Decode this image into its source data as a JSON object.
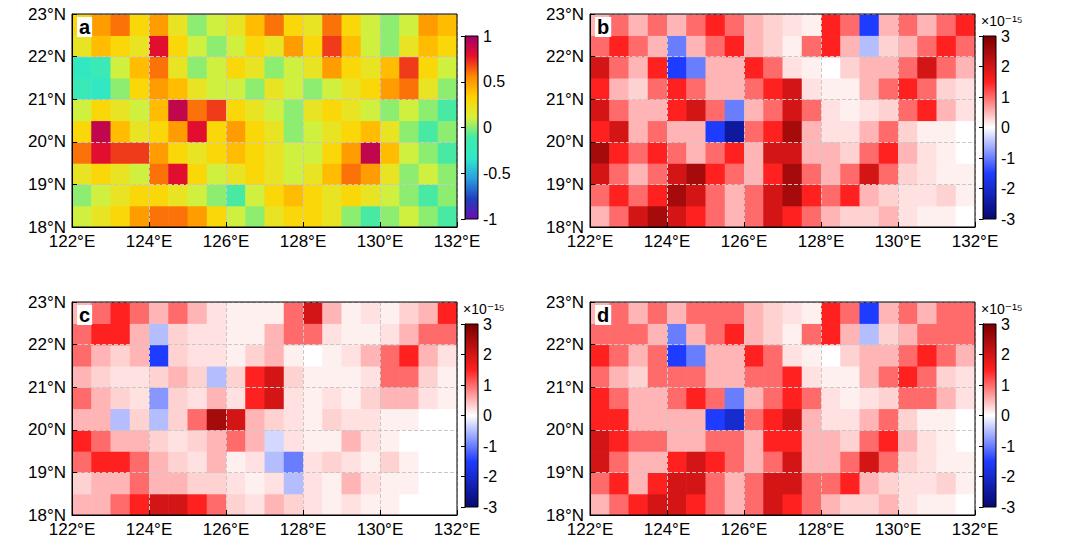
{
  "chart_data": [
    {
      "type": "heatmap",
      "title": "a",
      "x": [
        122.25,
        122.75,
        123.25,
        123.75,
        124.25,
        124.75,
        125.25,
        125.75,
        126.25,
        126.75,
        127.25,
        127.75,
        128.25,
        128.75,
        129.25,
        129.75,
        130.25,
        130.75,
        131.25,
        131.75
      ],
      "y": [
        18.25,
        18.75,
        19.25,
        19.75,
        20.25,
        20.75,
        21.25,
        21.75,
        22.25,
        22.75
      ],
      "values": [
        [
          0.1,
          0.2,
          0.3,
          0.5,
          0.6,
          0.6,
          0.5,
          0.3,
          0.1,
          0.0,
          0.2,
          0.3,
          0.3,
          0.2,
          0.0,
          -0.1,
          0.0,
          0.1,
          0.0,
          -0.1
        ],
        [
          0.0,
          0.1,
          0.2,
          0.3,
          0.3,
          0.2,
          0.1,
          0.0,
          -0.1,
          0.1,
          0.3,
          0.4,
          0.3,
          0.2,
          0.3,
          0.2,
          0.1,
          0.0,
          -0.1,
          0.0
        ],
        [
          0.2,
          0.3,
          0.2,
          0.1,
          0.6,
          0.8,
          0.3,
          0.1,
          0.2,
          0.3,
          0.2,
          0.1,
          0.2,
          0.4,
          0.6,
          0.5,
          0.2,
          0.0,
          0.1,
          0.0
        ],
        [
          0.6,
          0.8,
          0.7,
          0.7,
          0.5,
          0.3,
          0.2,
          0.3,
          0.4,
          0.3,
          0.2,
          0.1,
          0.1,
          0.3,
          0.5,
          0.9,
          0.4,
          0.1,
          0.0,
          -0.1
        ],
        [
          0.3,
          0.9,
          0.4,
          0.2,
          0.3,
          0.5,
          0.8,
          0.3,
          0.5,
          0.3,
          0.2,
          0.0,
          0.1,
          0.2,
          0.3,
          0.4,
          0.2,
          0.0,
          -0.1,
          0.0
        ],
        [
          0.1,
          0.3,
          0.2,
          0.1,
          0.4,
          0.9,
          0.6,
          0.7,
          0.3,
          0.2,
          0.1,
          0.0,
          0.2,
          0.3,
          0.2,
          0.1,
          0.0,
          0.1,
          0.0,
          -0.1
        ],
        [
          -0.2,
          -0.3,
          0.0,
          0.3,
          0.5,
          0.4,
          0.2,
          0.1,
          0.1,
          0.0,
          0.2,
          0.1,
          0.0,
          0.1,
          0.2,
          0.3,
          0.5,
          0.6,
          0.2,
          0.0
        ],
        [
          -0.3,
          -0.2,
          0.1,
          0.4,
          0.6,
          0.2,
          0.0,
          0.1,
          0.3,
          0.2,
          0.0,
          0.1,
          0.2,
          0.5,
          0.3,
          0.2,
          0.4,
          0.7,
          0.3,
          0.1
        ],
        [
          0.2,
          0.4,
          0.3,
          0.2,
          0.8,
          0.3,
          0.1,
          0.0,
          0.1,
          0.3,
          0.2,
          0.5,
          0.3,
          0.7,
          0.4,
          0.1,
          0.0,
          0.2,
          0.4,
          0.3
        ],
        [
          0.3,
          0.5,
          0.6,
          0.3,
          0.5,
          0.2,
          0.0,
          0.1,
          0.2,
          0.4,
          0.6,
          0.3,
          0.2,
          0.6,
          0.3,
          0.1,
          0.0,
          0.1,
          0.5,
          0.4
        ]
      ],
      "xlim": [
        122,
        132
      ],
      "ylim": [
        18,
        23
      ],
      "xticks": [
        {
          "value": 122,
          "label": "122°E"
        },
        {
          "value": 124,
          "label": "124°E"
        },
        {
          "value": 126,
          "label": "126°E"
        },
        {
          "value": 128,
          "label": "128°E"
        },
        {
          "value": 130,
          "label": "130°E"
        },
        {
          "value": 132,
          "label": "132°E"
        }
      ],
      "yticks": [
        {
          "value": 18,
          "label": "18°N"
        },
        {
          "value": 19,
          "label": "19°N"
        },
        {
          "value": 20,
          "label": "20°N"
        },
        {
          "value": 21,
          "label": "21°N"
        },
        {
          "value": 22,
          "label": "22°N"
        },
        {
          "value": 23,
          "label": "23°N"
        }
      ],
      "grid": true,
      "colorbar_range": [
        -1,
        1
      ],
      "colorbar_ticks": [
        -1,
        -0.5,
        0,
        0.5,
        1
      ]
    },
    {
      "type": "heatmap",
      "title": "b",
      "x": [
        122.25,
        122.75,
        123.25,
        123.75,
        124.25,
        124.75,
        125.25,
        125.75,
        126.25,
        126.75,
        127.25,
        127.75,
        128.25,
        128.75,
        129.25,
        129.75,
        130.25,
        130.75,
        131.25,
        131.75
      ],
      "y": [
        18.25,
        18.75,
        19.25,
        19.75,
        20.25,
        20.75,
        21.25,
        21.75,
        22.25,
        22.75
      ],
      "values": [
        [
          0.5,
          1,
          2,
          2.5,
          2,
          1.5,
          1,
          0.5,
          1,
          2,
          1.5,
          1,
          0.5,
          0.3,
          0.3,
          0.5,
          0.2,
          0.1,
          0.1,
          0
        ],
        [
          1,
          1.5,
          1,
          1.5,
          2.5,
          2,
          1,
          0.5,
          1,
          2,
          2.5,
          1.5,
          1,
          1.5,
          0.5,
          0.3,
          0.2,
          0.2,
          0.3,
          0.1
        ],
        [
          2,
          1,
          0.5,
          1,
          2,
          2.5,
          1.5,
          1,
          0.5,
          1.5,
          2.5,
          1,
          0.5,
          1,
          2,
          1,
          0.3,
          0.2,
          0.1,
          0.1
        ],
        [
          2.5,
          1.5,
          1,
          1.5,
          1,
          0.5,
          1,
          1.5,
          0.5,
          2,
          2,
          0.5,
          0.5,
          0.3,
          1,
          1.5,
          0.5,
          0.2,
          0.1,
          0
        ],
        [
          1.5,
          2,
          0.5,
          1,
          0.5,
          0.5,
          -1.5,
          -2.5,
          1,
          1.5,
          2.5,
          0.5,
          0.2,
          0.2,
          0.5,
          1,
          0.3,
          0.1,
          0.1,
          0
        ],
        [
          2,
          1,
          0.5,
          0.5,
          1.5,
          2,
          1,
          -1,
          0.5,
          1,
          2,
          1,
          0.2,
          0.1,
          0.2,
          0.3,
          1,
          1.5,
          0.5,
          0.2
        ],
        [
          1.5,
          0.5,
          0.3,
          1,
          1.5,
          1,
          0.5,
          0.5,
          1,
          1.5,
          2,
          0.2,
          0.1,
          0.1,
          0.5,
          1,
          1.5,
          1,
          0.3,
          0.2
        ],
        [
          2,
          1,
          0.5,
          1.5,
          -1.5,
          -1,
          0.5,
          0.5,
          1.5,
          1,
          0.2,
          0.1,
          0,
          0.3,
          0.5,
          0.5,
          1,
          2,
          1,
          0.5
        ],
        [
          1,
          1.5,
          1,
          0.5,
          -1,
          0.5,
          1,
          1.5,
          0.5,
          0.3,
          0.1,
          1,
          1.5,
          0.5,
          -0.5,
          0.3,
          0.5,
          1,
          1.5,
          1
        ],
        [
          0.5,
          1,
          0.5,
          1,
          0.5,
          1,
          1.5,
          1,
          0.5,
          0.3,
          0.2,
          0.1,
          1.5,
          1,
          -1.5,
          0.5,
          1,
          0.5,
          1,
          1.5
        ]
      ],
      "xlim": [
        122,
        132
      ],
      "ylim": [
        18,
        23
      ],
      "xticks": [
        {
          "value": 122,
          "label": "122°E"
        },
        {
          "value": 124,
          "label": "124°E"
        },
        {
          "value": 126,
          "label": "126°E"
        },
        {
          "value": 128,
          "label": "128°E"
        },
        {
          "value": 130,
          "label": "130°E"
        },
        {
          "value": 132,
          "label": "132°E"
        }
      ],
      "yticks": [
        {
          "value": 18,
          "label": "18°N"
        },
        {
          "value": 19,
          "label": "19°N"
        },
        {
          "value": 20,
          "label": "20°N"
        },
        {
          "value": 21,
          "label": "21°N"
        },
        {
          "value": 22,
          "label": "22°N"
        },
        {
          "value": 23,
          "label": "23°N"
        }
      ],
      "grid": true,
      "colorbar_range": [
        -3,
        3
      ],
      "colorbar_ticks": [
        -3,
        -2,
        -1,
        0,
        1,
        2,
        3
      ],
      "colorbar_label": "×10⁻¹⁵"
    },
    {
      "type": "heatmap",
      "title": "c",
      "x": [
        122.25,
        122.75,
        123.25,
        123.75,
        124.25,
        124.75,
        125.25,
        125.75,
        126.25,
        126.75,
        127.25,
        127.75,
        128.25,
        128.75,
        129.25,
        129.75,
        130.25,
        130.75,
        131.25,
        131.75
      ],
      "y": [
        18.25,
        18.75,
        19.25,
        19.75,
        20.25,
        20.75,
        21.25,
        21.75,
        22.25,
        22.75
      ],
      "values": [
        [
          0.5,
          0.5,
          1,
          1.5,
          2,
          2,
          1.5,
          1,
          0.3,
          0.2,
          0.5,
          0.3,
          0.2,
          0.1,
          0.2,
          0.1,
          0.1,
          0,
          0,
          0
        ],
        [
          0.3,
          0.5,
          0.5,
          1,
          0.5,
          0.5,
          0.3,
          0.3,
          0.2,
          0.1,
          0.2,
          -0.5,
          0.2,
          0.1,
          0.5,
          0.2,
          0.1,
          0.1,
          0,
          0
        ],
        [
          1,
          1.5,
          1.5,
          1,
          0.5,
          0.3,
          0.2,
          0.5,
          0.1,
          0.2,
          -0.5,
          -1,
          0.2,
          0.3,
          0.2,
          0.1,
          0.3,
          0.1,
          0,
          0
        ],
        [
          1.5,
          1,
          0.5,
          0.5,
          0.3,
          0.2,
          0.3,
          0.5,
          1,
          0.5,
          -0.3,
          0.2,
          0.1,
          0.1,
          0.5,
          0.2,
          0.1,
          0,
          0,
          0
        ],
        [
          0.5,
          0.5,
          -0.5,
          0.3,
          -0.5,
          0.3,
          1,
          2.5,
          2,
          0.5,
          0.3,
          0.2,
          0.1,
          0.3,
          0.2,
          0.2,
          0.1,
          0.1,
          0,
          0
        ],
        [
          1,
          0.5,
          0.3,
          0.2,
          -0.8,
          0.3,
          0.2,
          0.5,
          0.2,
          1.5,
          2,
          0.2,
          0.1,
          0.2,
          0.1,
          0.3,
          0.5,
          0.5,
          0.2,
          0.1
        ],
        [
          0.5,
          0.3,
          0.2,
          0.2,
          0.3,
          0.5,
          0.3,
          -0.5,
          0.3,
          1.5,
          2,
          0.3,
          0.1,
          0.1,
          0.1,
          0.2,
          1,
          1,
          0.3,
          0.1
        ],
        [
          1,
          0.5,
          0.3,
          0.5,
          -1.5,
          0.3,
          0.2,
          0.2,
          0.1,
          0.3,
          0.5,
          0.1,
          0,
          0.1,
          0.2,
          0.5,
          1,
          1.5,
          0.5,
          0.2
        ],
        [
          1,
          1.5,
          1.5,
          0.5,
          -0.5,
          0.3,
          0.2,
          0.2,
          0.1,
          0.1,
          0.5,
          1,
          1,
          0.2,
          0.1,
          0.1,
          0.2,
          0.5,
          1,
          1
        ],
        [
          0.5,
          1,
          1.5,
          1,
          0.5,
          1,
          0.5,
          0.2,
          0.1,
          0.1,
          0.1,
          1,
          2,
          0.5,
          0.1,
          0.2,
          0.1,
          0.3,
          0.5,
          1.5
        ]
      ],
      "xlim": [
        122,
        132
      ],
      "ylim": [
        18,
        23
      ],
      "xticks": [
        {
          "value": 122,
          "label": "122°E"
        },
        {
          "value": 124,
          "label": "124°E"
        },
        {
          "value": 126,
          "label": "126°E"
        },
        {
          "value": 128,
          "label": "128°E"
        },
        {
          "value": 130,
          "label": "130°E"
        },
        {
          "value": 132,
          "label": "132°E"
        }
      ],
      "yticks": [
        {
          "value": 18,
          "label": "18°N"
        },
        {
          "value": 19,
          "label": "19°N"
        },
        {
          "value": 20,
          "label": "20°N"
        },
        {
          "value": 21,
          "label": "21°N"
        },
        {
          "value": 22,
          "label": "22°N"
        },
        {
          "value": 23,
          "label": "23°N"
        }
      ],
      "grid": true,
      "colorbar_range": [
        -3,
        3
      ],
      "colorbar_ticks": [
        -3,
        -2,
        -1,
        0,
        1,
        2,
        3
      ],
      "colorbar_label": "×10⁻¹⁵"
    },
    {
      "type": "heatmap",
      "title": "d",
      "x": [
        122.25,
        122.75,
        123.25,
        123.75,
        124.25,
        124.75,
        125.25,
        125.75,
        126.25,
        126.75,
        127.25,
        127.75,
        128.25,
        128.75,
        129.25,
        129.75,
        130.25,
        130.75,
        131.25,
        131.75
      ],
      "y": [
        18.25,
        18.75,
        19.25,
        19.75,
        20.25,
        20.75,
        21.25,
        21.75,
        22.25,
        22.75
      ],
      "values": [
        [
          0.5,
          1,
          1.5,
          2,
          2,
          1.5,
          1,
          0.5,
          1,
          2,
          1.5,
          1,
          0.5,
          0.3,
          0.3,
          0.5,
          0.2,
          0.1,
          0.1,
          0
        ],
        [
          1,
          1.5,
          0.5,
          1.5,
          2,
          2,
          1,
          0.5,
          1,
          2,
          2,
          1,
          1,
          1.5,
          0.5,
          0.3,
          0.2,
          0.2,
          0.3,
          0.1
        ],
        [
          2,
          1,
          0.5,
          0.5,
          1.5,
          2,
          1.5,
          1,
          0.5,
          1,
          2,
          0.5,
          0.5,
          1,
          2,
          1,
          0.3,
          0.2,
          0.1,
          0.1
        ],
        [
          2,
          1.5,
          1,
          1,
          0.5,
          0.5,
          1,
          1,
          0.5,
          1.5,
          1.5,
          0.5,
          0.5,
          0.3,
          1,
          1.5,
          0.5,
          0.2,
          0.1,
          0
        ],
        [
          1.5,
          1.5,
          0.5,
          0.5,
          0.5,
          0.5,
          -1.5,
          -2,
          1,
          1.5,
          2,
          0.5,
          0.2,
          0.2,
          0.5,
          1,
          0.3,
          0.1,
          0.1,
          0
        ],
        [
          1.5,
          1,
          0.5,
          0.5,
          1,
          1.5,
          1,
          -1,
          0.5,
          1,
          1.5,
          1,
          0.2,
          0.1,
          0.2,
          0.3,
          1,
          1,
          0.5,
          0.2
        ],
        [
          1,
          0.5,
          0.3,
          1,
          1,
          1,
          0.5,
          0.5,
          1,
          1,
          1.5,
          0.2,
          0.1,
          0.1,
          0.5,
          1,
          1.5,
          1,
          0.3,
          0.2
        ],
        [
          1.5,
          1,
          0.5,
          1,
          -1.5,
          -1,
          0.5,
          0.5,
          1.5,
          1,
          0.2,
          0.1,
          0,
          0.3,
          0.5,
          0.5,
          1,
          1.5,
          1,
          0.5
        ],
        [
          1,
          1,
          1,
          0.5,
          -1,
          0.5,
          1,
          1.5,
          0.5,
          0.3,
          0.1,
          1,
          1.5,
          0.5,
          -0.5,
          0.3,
          0.5,
          1,
          1,
          1
        ],
        [
          0.5,
          1,
          0.5,
          1,
          0.5,
          1,
          1,
          1,
          0.5,
          0.3,
          0.2,
          0.1,
          1.5,
          1,
          -1.5,
          0.5,
          1,
          0.5,
          1,
          1
        ]
      ],
      "xlim": [
        122,
        132
      ],
      "ylim": [
        18,
        23
      ],
      "xticks": [
        {
          "value": 122,
          "label": "122°E"
        },
        {
          "value": 124,
          "label": "124°E"
        },
        {
          "value": 126,
          "label": "126°E"
        },
        {
          "value": 128,
          "label": "128°E"
        },
        {
          "value": 130,
          "label": "130°E"
        },
        {
          "value": 132,
          "label": "132°E"
        }
      ],
      "yticks": [
        {
          "value": 18,
          "label": "18°N"
        },
        {
          "value": 19,
          "label": "19°N"
        },
        {
          "value": 20,
          "label": "20°N"
        },
        {
          "value": 21,
          "label": "21°N"
        },
        {
          "value": 22,
          "label": "22°N"
        },
        {
          "value": 23,
          "label": "23°N"
        }
      ],
      "grid": true,
      "colorbar_range": [
        -3,
        3
      ],
      "colorbar_ticks": [
        -3,
        -2,
        -1,
        0,
        1,
        2,
        3
      ],
      "colorbar_label": "×10⁻¹⁵"
    }
  ]
}
